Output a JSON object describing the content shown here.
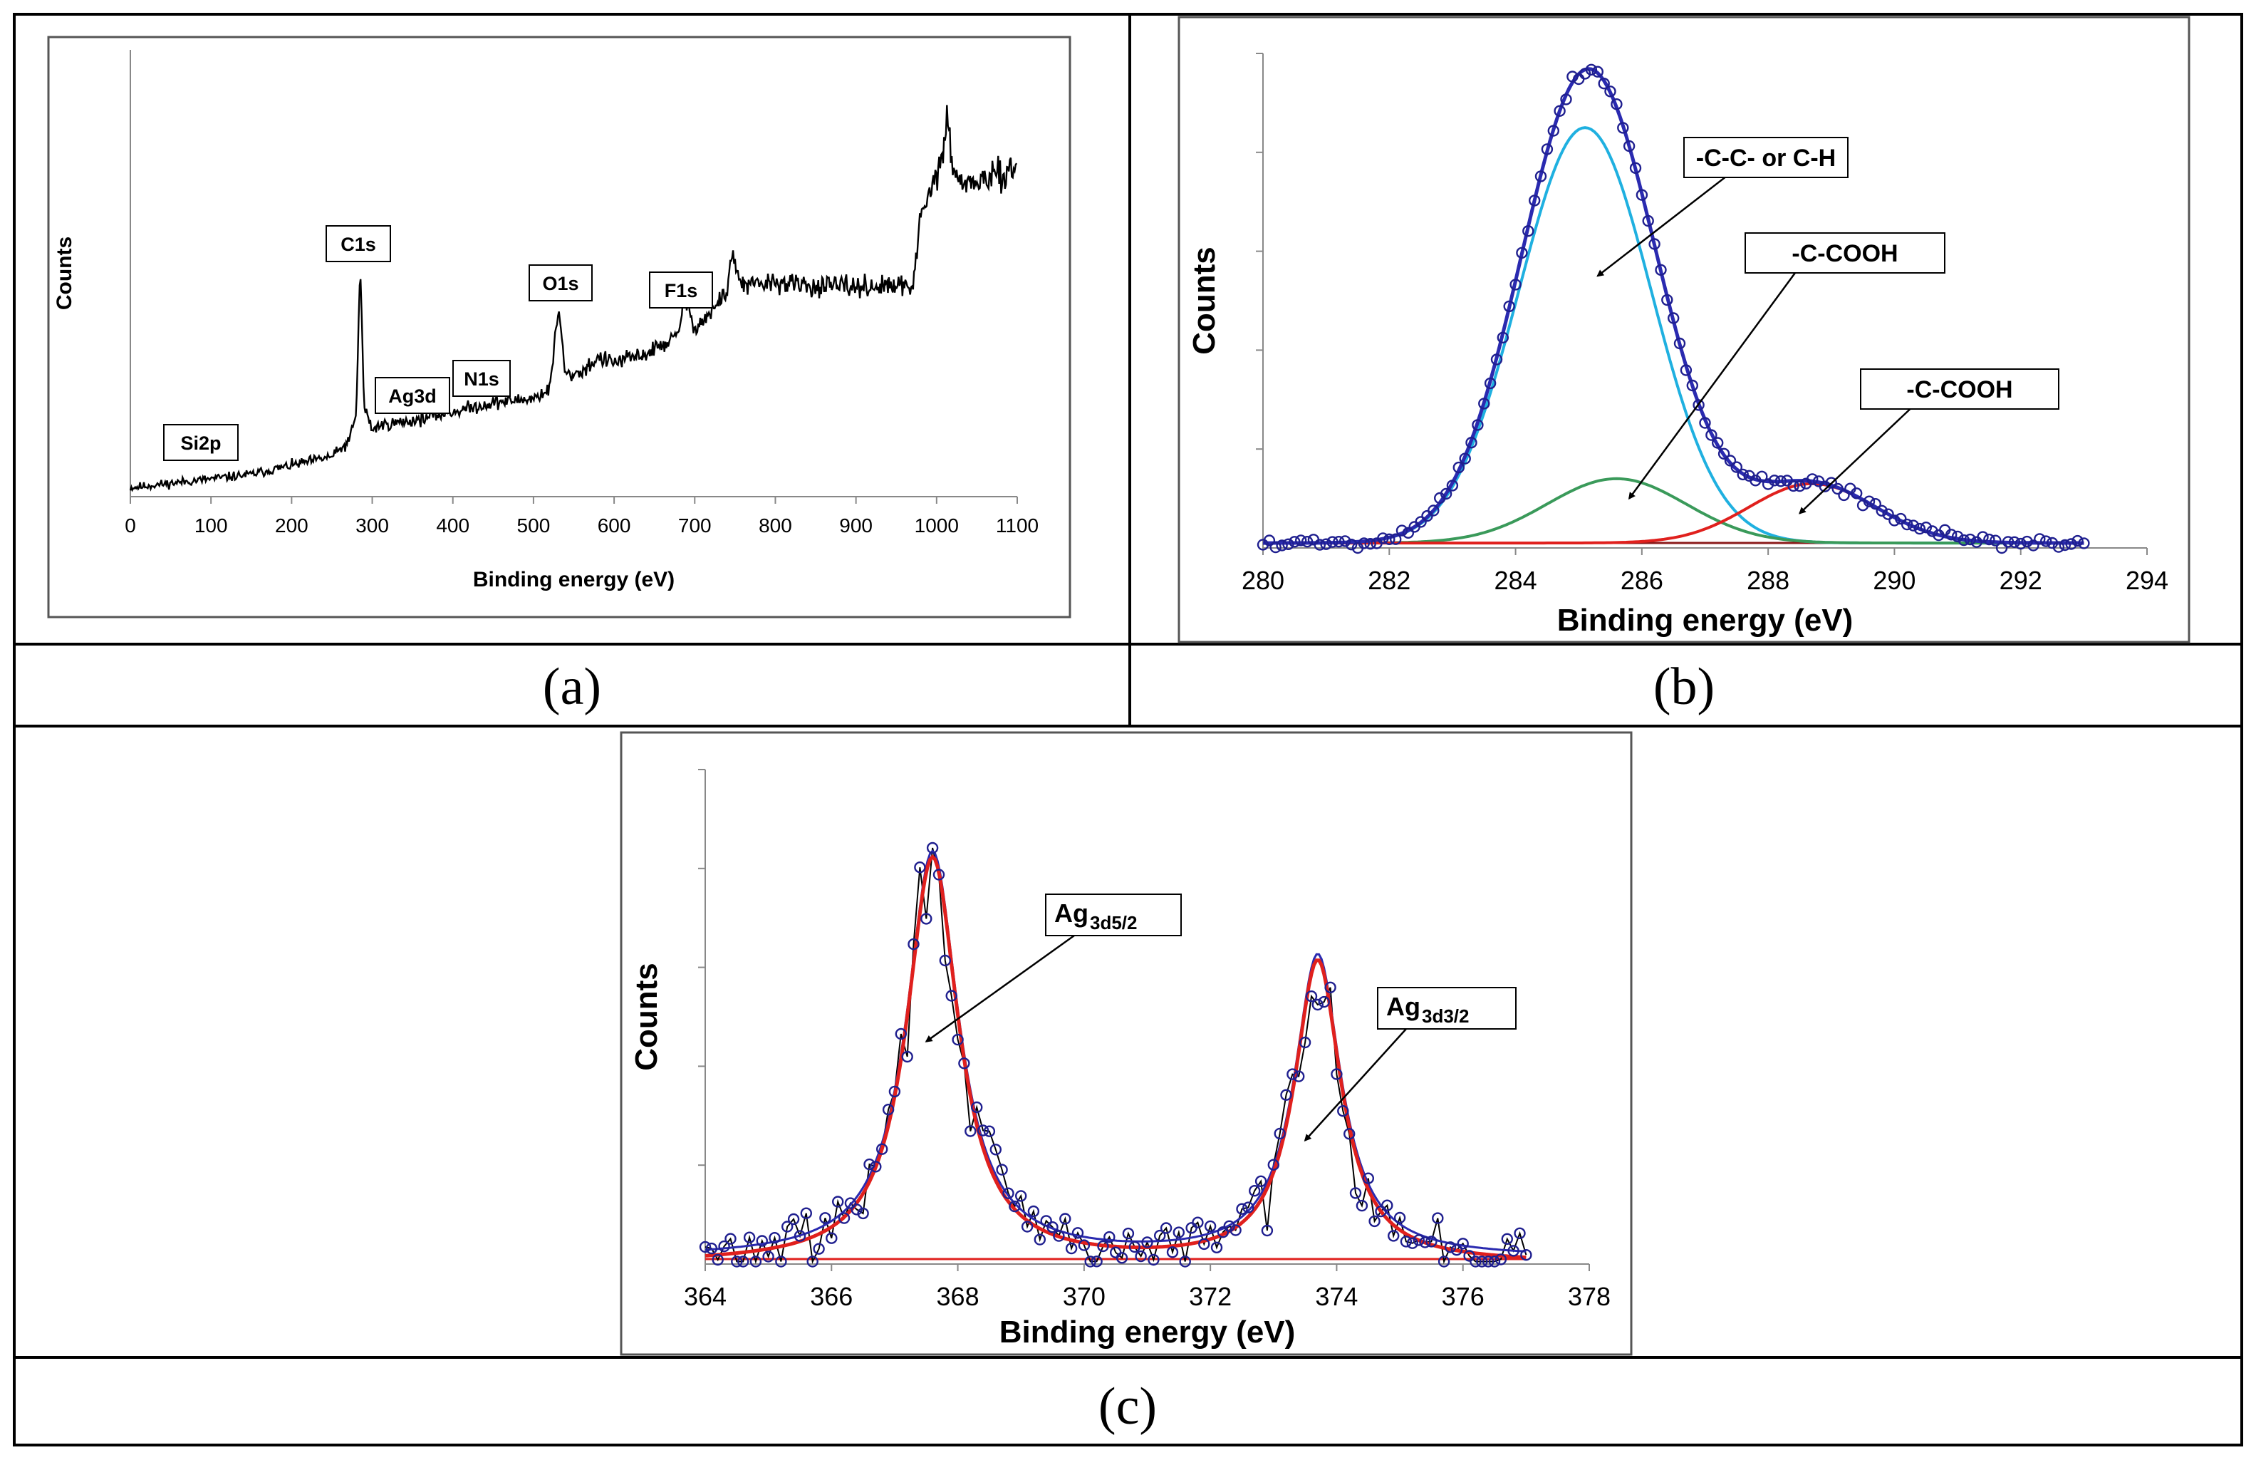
{
  "captions": {
    "a": "(a)",
    "b": "(b)",
    "c": "(c)"
  },
  "chart_data": [
    {
      "panel": "a",
      "type": "line",
      "xlabel": "Binding energy (eV)",
      "ylabel": "Counts",
      "xlim": [
        0,
        1100
      ],
      "xticks": [
        "0",
        "100",
        "200",
        "300",
        "400",
        "500",
        "600",
        "700",
        "800",
        "900",
        "1000",
        "1100"
      ],
      "y_tick_labels": "none",
      "grid": false,
      "series": [
        {
          "color": "#000000",
          "noise": 0.045,
          "seed": 11,
          "x": [
            0,
            50,
            100,
            150,
            200,
            250,
            270,
            280,
            285,
            290,
            300,
            310,
            350,
            400,
            450,
            500,
            520,
            531,
            540,
            560,
            580,
            600,
            640,
            680,
            686,
            700,
            720,
            740,
            745,
            760,
            800,
            850,
            900,
            950,
            970,
            980,
            1000,
            1010,
            1013,
            1020,
            1040,
            1060,
            1080,
            1100
          ],
          "y": [
            0.02,
            0.03,
            0.04,
            0.05,
            0.07,
            0.09,
            0.12,
            0.18,
            0.52,
            0.2,
            0.15,
            0.16,
            0.17,
            0.19,
            0.21,
            0.22,
            0.24,
            0.42,
            0.27,
            0.28,
            0.31,
            0.3,
            0.32,
            0.36,
            0.45,
            0.38,
            0.41,
            0.46,
            0.54,
            0.47,
            0.48,
            0.47,
            0.47,
            0.47,
            0.47,
            0.62,
            0.72,
            0.78,
            0.87,
            0.72,
            0.7,
            0.71,
            0.72,
            0.74
          ]
        }
      ],
      "annotations": [
        {
          "text": "Si2p",
          "x": 100
        },
        {
          "text": "C1s",
          "x": 285
        },
        {
          "text": "Ag3d",
          "x": 368
        },
        {
          "text": "N1s",
          "x": 400
        },
        {
          "text": "O1s",
          "x": 531
        },
        {
          "text": "F1s",
          "x": 686
        }
      ]
    },
    {
      "panel": "b",
      "type": "line",
      "xlabel": "Binding energy (eV)",
      "ylabel": "Counts",
      "xlim": [
        280,
        294
      ],
      "xticks": [
        "280",
        "282",
        "284",
        "286",
        "288",
        "290",
        "292",
        "294"
      ],
      "y_tick_labels": "none",
      "grid": false,
      "scatter": {
        "color": "#1f1f8f",
        "x_range": [
          280.0,
          293.0
        ],
        "step": 0.1,
        "noise": 0.018,
        "seed": 5
      },
      "baseline": {
        "color": "#8b1a1a",
        "y": 0.01
      },
      "series": [
        {
          "component": "-C-C- or C-H",
          "color": "#1fb0e0",
          "center": 285.1,
          "sigma": 1.05,
          "height": 0.84
        },
        {
          "component": "-C-COOH",
          "color": "#3a9a5a",
          "center": 285.6,
          "sigma": 1.1,
          "height": 0.13
        },
        {
          "component": "-C-COOH",
          "color": "#e0201d",
          "center": 288.7,
          "sigma": 1.0,
          "height": 0.12
        },
        {
          "component": "envelope",
          "color": "#2a2ab0",
          "sum_of": [
            0,
            1,
            2
          ]
        }
      ],
      "annotations": [
        {
          "text": "-C-C- or C-H",
          "underline_chars": [
            1,
            8
          ],
          "arrow_to": [
            285.3,
            0.55
          ]
        },
        {
          "text": "-C-COOH",
          "underline_chars": [
            1
          ],
          "arrow_to": [
            285.8,
            0.1
          ]
        },
        {
          "text": "-C-COOH",
          "underline_chars": [
            3
          ],
          "arrow_to": [
            288.5,
            0.07
          ]
        }
      ]
    },
    {
      "panel": "c",
      "type": "line",
      "xlabel": "Binding energy (eV)",
      "ylabel": "Counts",
      "xlim": [
        364,
        378
      ],
      "xticks": [
        "364",
        "366",
        "368",
        "370",
        "372",
        "374",
        "376",
        "378"
      ],
      "y_tick_labels": "none",
      "grid": false,
      "scatter": {
        "color": "#1f1f8f",
        "line_color": "#000000",
        "x_range": [
          364.0,
          377.0
        ],
        "step": 0.1,
        "noise": 0.13,
        "seed": 29
      },
      "baseline": {
        "color": "#e0201d",
        "y": 0.01
      },
      "series": [
        {
          "component": "fit",
          "color": "#e0201d",
          "peaks": [
            {
              "center": 367.6,
              "gamma": 0.5,
              "height": 0.82
            },
            {
              "center": 373.7,
              "gamma": 0.45,
              "height": 0.61
            }
          ]
        },
        {
          "component": "envelope",
          "color": "#2a2ab0",
          "sum_of": [
            0
          ]
        }
      ],
      "annotations": [
        {
          "text": "Ag",
          "sub": "3d5/2",
          "arrow_to": [
            367.5,
            0.45
          ]
        },
        {
          "text": "Ag",
          "sub": "3d3/2",
          "arrow_to": [
            373.5,
            0.25
          ]
        }
      ]
    }
  ]
}
